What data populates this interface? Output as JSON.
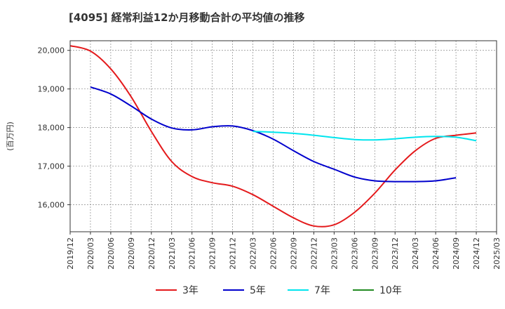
{
  "chart_data": {
    "type": "line",
    "title": "[4095]  経常利益12か月移動合計の平均値の推移",
    "ylabel": "(百万円)",
    "xlabel": "",
    "ylim": [
      15300,
      20250
    ],
    "yticks": [
      16000,
      17000,
      18000,
      19000,
      20000
    ],
    "ytick_labels": [
      "16,000",
      "17,000",
      "18,000",
      "19,000",
      "20,000"
    ],
    "x_labels": [
      "2019/12",
      "2020/03",
      "2020/06",
      "2020/09",
      "2020/12",
      "2021/03",
      "2021/06",
      "2021/09",
      "2021/12",
      "2022/03",
      "2022/06",
      "2022/09",
      "2022/12",
      "2023/03",
      "2023/06",
      "2023/09",
      "2023/12",
      "2024/03",
      "2024/06",
      "2024/09",
      "2024/12",
      "2025/03"
    ],
    "grid": true,
    "legend_position": "bottom",
    "series": [
      {
        "name": "3年",
        "color": "#e41a1c",
        "start_index": 0,
        "values": [
          20120,
          19980,
          19520,
          18800,
          17900,
          17120,
          16730,
          16570,
          16480,
          16260,
          15960,
          15660,
          15450,
          15480,
          15800,
          16300,
          16900,
          17400,
          17720,
          17800,
          17860
        ]
      },
      {
        "name": "5年",
        "color": "#0000cd",
        "start_index": 1,
        "values": [
          19050,
          18870,
          18560,
          18220,
          17990,
          17940,
          18020,
          18040,
          17920,
          17700,
          17400,
          17120,
          16920,
          16720,
          16620,
          16600,
          16600,
          16620,
          16700
        ]
      },
      {
        "name": "7年",
        "color": "#00e5ee",
        "start_index": 9,
        "values": [
          17900,
          17880,
          17850,
          17800,
          17740,
          17690,
          17680,
          17710,
          17750,
          17770,
          17750,
          17660
        ]
      },
      {
        "name": "10年",
        "color": "#228b22",
        "start_index": 0,
        "values": []
      }
    ]
  }
}
